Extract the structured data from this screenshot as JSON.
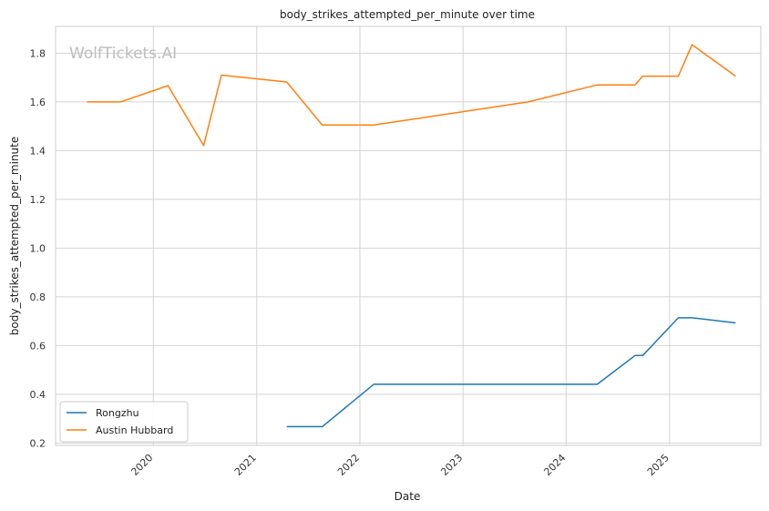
{
  "chart_data": {
    "type": "line",
    "title": "body_strikes_attempted_per_minute over time",
    "xlabel": "Date",
    "ylabel": "body_strikes_attempted_per_minute",
    "watermark": "WolfTickets.AI",
    "x_ticks": [
      "2020",
      "2021",
      "2022",
      "2023",
      "2024",
      "2025"
    ],
    "y_ticks": [
      "0.2",
      "0.4",
      "0.6",
      "0.8",
      "1.0",
      "1.2",
      "1.4",
      "1.6",
      "1.8"
    ],
    "xlim": [
      "2019-01-20",
      "2025-11-20"
    ],
    "ylim": [
      0.19,
      1.91
    ],
    "grid": true,
    "legend_position": "bottom-left",
    "series": [
      {
        "name": "Rongzhu",
        "color": "#1f77b4",
        "points": [
          [
            "2021-04-17",
            0.267
          ],
          [
            "2021-08-21",
            0.267
          ],
          [
            "2022-02-19",
            0.441
          ],
          [
            "2024-04-20",
            0.441
          ],
          [
            "2024-09-01",
            0.559
          ],
          [
            "2024-09-28",
            0.559
          ],
          [
            "2025-02-01",
            0.714
          ],
          [
            "2025-03-22",
            0.714
          ],
          [
            "2025-08-23",
            0.693
          ]
        ]
      },
      {
        "name": "Austin Hubbard",
        "color": "#ff7f0e",
        "points": [
          [
            "2019-05-11",
            1.6
          ],
          [
            "2019-09-07",
            1.6
          ],
          [
            "2020-02-22",
            1.667
          ],
          [
            "2020-06-27",
            1.421
          ],
          [
            "2020-08-29",
            1.71
          ],
          [
            "2021-04-17",
            1.682
          ],
          [
            "2021-08-21",
            1.505
          ],
          [
            "2022-02-19",
            1.505
          ],
          [
            "2023-08-19",
            1.6
          ],
          [
            "2024-04-20",
            1.67
          ],
          [
            "2024-09-01",
            1.67
          ],
          [
            "2024-09-28",
            1.706
          ],
          [
            "2025-02-01",
            1.706
          ],
          [
            "2025-03-22",
            1.835
          ],
          [
            "2025-08-23",
            1.706
          ]
        ]
      }
    ]
  }
}
